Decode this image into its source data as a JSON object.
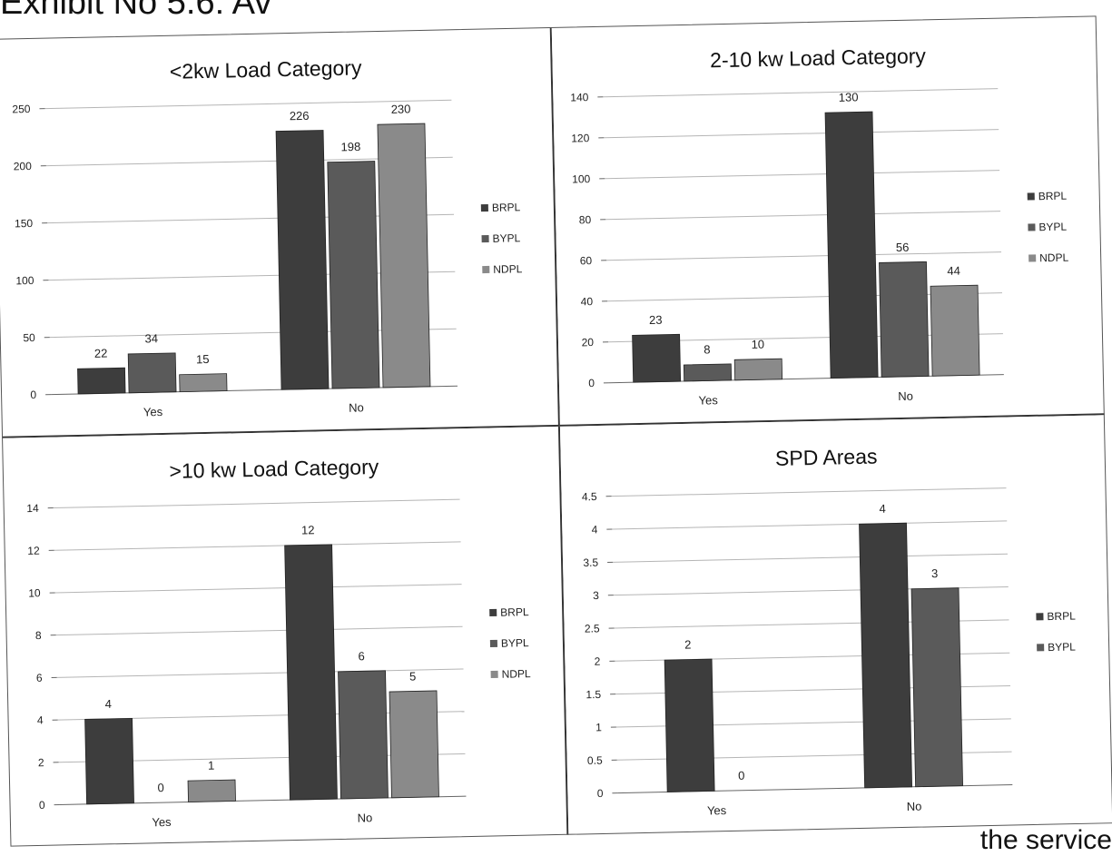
{
  "page": {
    "heading_fragment": "Exhibit No 5.6: Av",
    "footer_fragment": "the service"
  },
  "colors": {
    "BRPL": "#3d3d3d",
    "BYPL": "#5a5a5a",
    "NDPL": "#8a8a8a",
    "gridline": "#b5b5b5",
    "axis": "#666666"
  },
  "chart_data": [
    {
      "type": "bar",
      "title": "<2kw Load Category",
      "categories": [
        "Yes",
        "No"
      ],
      "series": [
        {
          "name": "BRPL",
          "values": [
            22,
            226
          ]
        },
        {
          "name": "BYPL",
          "values": [
            34,
            198
          ]
        },
        {
          "name": "NDPL",
          "values": [
            15,
            230
          ]
        }
      ],
      "ylim": [
        0,
        250
      ],
      "yticks": [
        "0",
        "50",
        "100",
        "150",
        "200",
        "250"
      ],
      "ytick_values": [
        0,
        50,
        100,
        150,
        200,
        250
      ],
      "grid": true,
      "legend": "right"
    },
    {
      "type": "bar",
      "title": "2-10 kw Load Category",
      "categories": [
        "Yes",
        "No"
      ],
      "series": [
        {
          "name": "BRPL",
          "values": [
            23,
            130
          ]
        },
        {
          "name": "BYPL",
          "values": [
            8,
            56
          ]
        },
        {
          "name": "NDPL",
          "values": [
            10,
            44
          ]
        }
      ],
      "ylim": [
        0,
        140
      ],
      "yticks": [
        "0",
        "20",
        "40",
        "60",
        "80",
        "100",
        "120",
        "140"
      ],
      "ytick_values": [
        0,
        20,
        40,
        60,
        80,
        100,
        120,
        140
      ],
      "grid": true,
      "legend": "right"
    },
    {
      "type": "bar",
      "title": ">10 kw Load Category",
      "categories": [
        "Yes",
        "No"
      ],
      "series": [
        {
          "name": "BRPL",
          "values": [
            4,
            12
          ]
        },
        {
          "name": "BYPL",
          "values": [
            0,
            6
          ]
        },
        {
          "name": "NDPL",
          "values": [
            1,
            5
          ]
        }
      ],
      "ylim": [
        0,
        14
      ],
      "yticks": [
        "0",
        "2",
        "4",
        "6",
        "8",
        "10",
        "12",
        "14"
      ],
      "ytick_values": [
        0,
        2,
        4,
        6,
        8,
        10,
        12,
        14
      ],
      "grid": true,
      "legend": "right"
    },
    {
      "type": "bar",
      "title": "SPD Areas",
      "categories": [
        "Yes",
        "No"
      ],
      "series": [
        {
          "name": "BRPL",
          "values": [
            2,
            4
          ]
        },
        {
          "name": "BYPL",
          "values": [
            0,
            3
          ]
        }
      ],
      "ylim": [
        0,
        4.5
      ],
      "yticks": [
        "0",
        "0.5",
        "1",
        "1.5",
        "2",
        "2.5",
        "3",
        "3.5",
        "4",
        "4.5"
      ],
      "ytick_values": [
        0,
        0.5,
        1,
        1.5,
        2,
        2.5,
        3,
        3.5,
        4,
        4.5
      ],
      "grid": true,
      "legend": "right"
    }
  ]
}
